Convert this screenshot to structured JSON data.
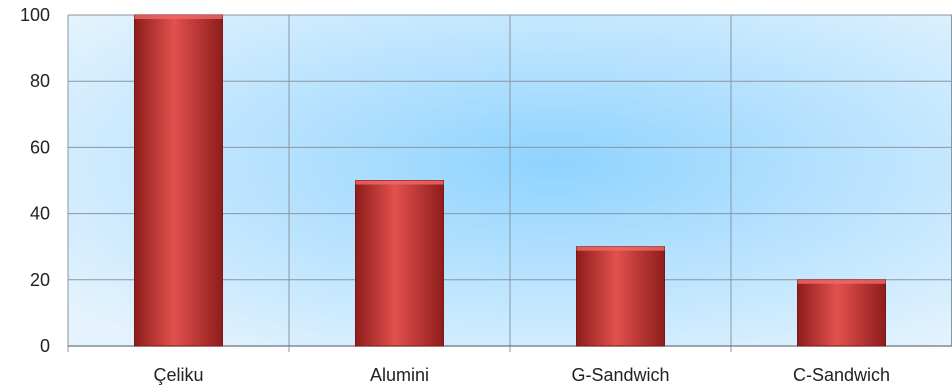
{
  "chart_data": {
    "type": "bar",
    "categories": [
      "Çeliku",
      "Alumini",
      "G-Sandwich",
      "C-Sandwich"
    ],
    "values": [
      100,
      50,
      30,
      20
    ],
    "title": "",
    "xlabel": "",
    "ylabel": "",
    "ylim": [
      0,
      100
    ],
    "yticks": [
      0,
      20,
      40,
      60,
      80,
      100
    ],
    "grid": true,
    "legend": "none",
    "colors": {
      "bar": "#c93a38",
      "bar_dark": "#8e1d1c",
      "bar_light": "#e2514d",
      "background_center": "#8fd3ff",
      "background_edge": "#e4f3fd",
      "grid": "#8a96a0"
    }
  }
}
